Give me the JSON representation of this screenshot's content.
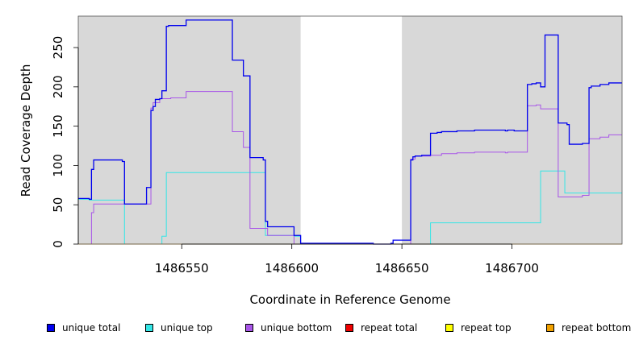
{
  "chart_data": {
    "type": "line",
    "title": "",
    "xlabel": "Coordinate in Reference Genome",
    "ylabel": "Read Coverage Depth",
    "xlim": [
      1486503,
      1486750
    ],
    "ylim": [
      0,
      290
    ],
    "x_ticks": [
      1486550,
      1486600,
      1486650,
      1486700
    ],
    "y_ticks": [
      0,
      50,
      100,
      150,
      200,
      250
    ],
    "shaded_regions": [
      [
        1486503,
        1486604
      ],
      [
        1486650,
        1486750
      ]
    ],
    "colors": {
      "unique_total": "#0000ee",
      "unique_top": "#33e6e6",
      "unique_bottom": "#a855e8",
      "repeat_total": "#ee0000",
      "repeat_top": "#ffff00",
      "repeat_bottom": "#f0a000",
      "shade": "#d8d8d8"
    },
    "series": [
      {
        "name": "unique total",
        "key": "unique_total",
        "color": "#0000ee",
        "step_points": [
          [
            1486503,
            58
          ],
          [
            1486508,
            57
          ],
          [
            1486509,
            95
          ],
          [
            1486510,
            107
          ],
          [
            1486523,
            105
          ],
          [
            1486524,
            51
          ],
          [
            1486534,
            72
          ],
          [
            1486536,
            170
          ],
          [
            1486537,
            175
          ],
          [
            1486538,
            184
          ],
          [
            1486540,
            185
          ],
          [
            1486541,
            195
          ],
          [
            1486543,
            277
          ],
          [
            1486544,
            278
          ],
          [
            1486552,
            285
          ],
          [
            1486573,
            234
          ],
          [
            1486578,
            214
          ],
          [
            1486581,
            110
          ],
          [
            1486587,
            107
          ],
          [
            1486588,
            29
          ],
          [
            1486589,
            22
          ],
          [
            1486601,
            11
          ],
          [
            1486604,
            1
          ],
          [
            1486637,
            0
          ],
          [
            1486645,
            1
          ],
          [
            1486646,
            5
          ],
          [
            1486654,
            107
          ],
          [
            1486655,
            111
          ],
          [
            1486656,
            112
          ],
          [
            1486659,
            113
          ],
          [
            1486663,
            141
          ],
          [
            1486666,
            142
          ],
          [
            1486668,
            143
          ],
          [
            1486675,
            144
          ],
          [
            1486683,
            145
          ],
          [
            1486697,
            144
          ],
          [
            1486698,
            145
          ],
          [
            1486701,
            144
          ],
          [
            1486707,
            203
          ],
          [
            1486709,
            204
          ],
          [
            1486711,
            205
          ],
          [
            1486713,
            200
          ],
          [
            1486715,
            266
          ],
          [
            1486721,
            154
          ],
          [
            1486725,
            152
          ],
          [
            1486726,
            127
          ],
          [
            1486732,
            128
          ],
          [
            1486735,
            199
          ],
          [
            1486736,
            201
          ],
          [
            1486740,
            203
          ],
          [
            1486744,
            205
          ],
          [
            1486750,
            205
          ]
        ]
      },
      {
        "name": "unique top",
        "key": "unique_top",
        "color": "#33e6e6",
        "step_points": [
          [
            1486503,
            57
          ],
          [
            1486508,
            56
          ],
          [
            1486524,
            0
          ],
          [
            1486541,
            10
          ],
          [
            1486543,
            91
          ],
          [
            1486588,
            11
          ],
          [
            1486601,
            10
          ],
          [
            1486604,
            0
          ],
          [
            1486663,
            27
          ],
          [
            1486701,
            27
          ],
          [
            1486713,
            93
          ],
          [
            1486724,
            65
          ],
          [
            1486750,
            65
          ]
        ]
      },
      {
        "name": "unique bottom",
        "key": "unique_bottom",
        "color": "#a855e8",
        "step_points": [
          [
            1486503,
            0
          ],
          [
            1486509,
            40
          ],
          [
            1486510,
            51
          ],
          [
            1486536,
            173
          ],
          [
            1486537,
            180
          ],
          [
            1486540,
            185
          ],
          [
            1486545,
            186
          ],
          [
            1486552,
            194
          ],
          [
            1486573,
            143
          ],
          [
            1486578,
            123
          ],
          [
            1486581,
            20
          ],
          [
            1486589,
            11
          ],
          [
            1486601,
            0
          ],
          [
            1486654,
            108
          ],
          [
            1486656,
            112
          ],
          [
            1486663,
            113
          ],
          [
            1486668,
            115
          ],
          [
            1486675,
            116
          ],
          [
            1486683,
            117
          ],
          [
            1486697,
            116
          ],
          [
            1486698,
            117
          ],
          [
            1486707,
            176
          ],
          [
            1486711,
            177
          ],
          [
            1486713,
            172
          ],
          [
            1486721,
            60
          ],
          [
            1486732,
            62
          ],
          [
            1486735,
            134
          ],
          [
            1486740,
            136
          ],
          [
            1486744,
            139
          ],
          [
            1486750,
            139
          ]
        ]
      },
      {
        "name": "repeat total",
        "key": "repeat_total",
        "color": "#ee0000",
        "step_points": [
          [
            1486503,
            0
          ],
          [
            1486750,
            0
          ]
        ]
      },
      {
        "name": "repeat top",
        "key": "repeat_top",
        "color": "#ffff00",
        "step_points": [
          [
            1486503,
            0
          ],
          [
            1486750,
            0
          ]
        ]
      },
      {
        "name": "repeat bottom",
        "key": "repeat_bottom",
        "color": "#f0a000",
        "step_points": [
          [
            1486503,
            0
          ],
          [
            1486750,
            0
          ]
        ]
      }
    ],
    "legend": {
      "placement": "bottom",
      "entries": [
        {
          "label": "unique total",
          "color": "#0000ee"
        },
        {
          "label": "unique top",
          "color": "#33e6e6"
        },
        {
          "label": "unique bottom",
          "color": "#a855e8"
        },
        {
          "label": "repeat total",
          "color": "#ee0000"
        },
        {
          "label": "repeat top",
          "color": "#ffff00"
        },
        {
          "label": "repeat bottom",
          "color": "#f0a000"
        }
      ]
    }
  }
}
